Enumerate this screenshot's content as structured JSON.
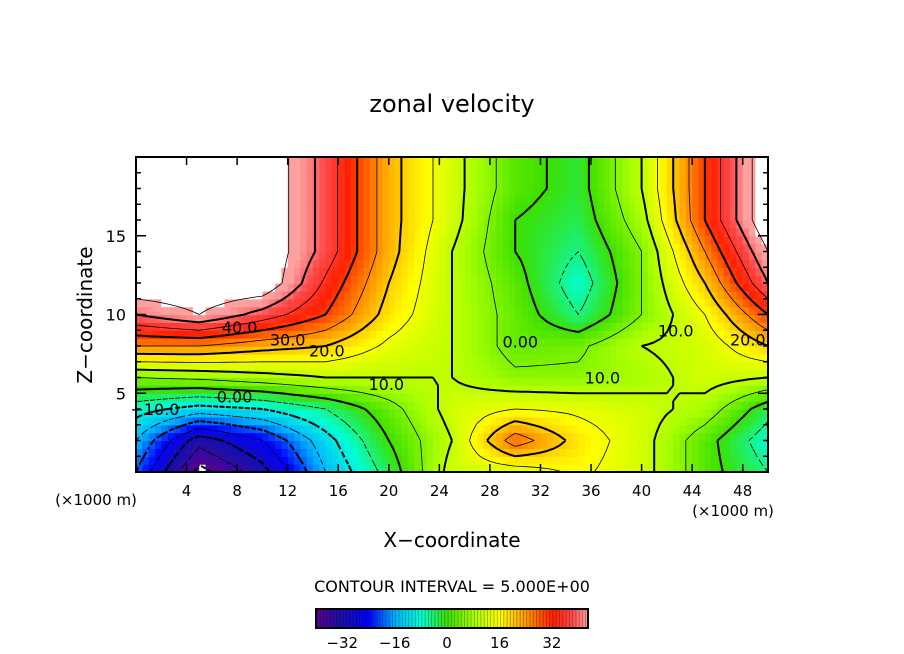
{
  "chart_data": {
    "type": "heatmap",
    "title": "zonal velocity",
    "xlabel": "X−coordinate",
    "ylabel": "Z−coordinate",
    "x_unit_left": "(×1000 m)",
    "x_unit_right": "(×1000 m)",
    "xlim": [
      0,
      50
    ],
    "ylim": [
      0,
      20
    ],
    "xticks": [
      4,
      8,
      12,
      16,
      20,
      24,
      28,
      32,
      36,
      40,
      44,
      48
    ],
    "yticks": [
      5,
      10,
      15
    ],
    "contour_interval_text": "CONTOUR INTERVAL = 5.000E+00",
    "contour_interval": 5,
    "colorbar": {
      "range": [
        -40,
        43
      ],
      "ticks": [
        "−32",
        "−16",
        "0",
        "16",
        "32"
      ],
      "tick_values": [
        -32,
        -16,
        0,
        16,
        32
      ]
    },
    "grid_x": [
      0,
      5,
      10,
      15,
      20,
      25,
      30,
      35,
      40,
      45,
      50
    ],
    "grid_z": [
      0,
      2,
      4,
      6,
      8,
      10,
      12,
      14,
      16,
      18,
      20
    ],
    "values": [
      [
        -20,
        -42,
        -32,
        -15,
        -3,
        12,
        12,
        16,
        12,
        2,
        -5
      ],
      [
        -15,
        -33,
        -25,
        -12,
        0,
        10,
        28,
        18,
        12,
        2,
        -8
      ],
      [
        -8,
        -12,
        -10,
        -5,
        3,
        12,
        15,
        14,
        12,
        8,
        -3
      ],
      [
        5,
        6,
        8,
        10,
        10,
        10,
        6,
        6,
        8,
        12,
        10
      ],
      [
        25,
        25,
        22,
        20,
        14,
        10,
        3,
        4,
        10,
        12,
        20
      ],
      [
        40,
        45,
        38,
        30,
        18,
        10,
        3,
        -5,
        5,
        15,
        30
      ],
      [
        50,
        50,
        50,
        34,
        20,
        10,
        2,
        -8,
        5,
        20,
        40
      ],
      [
        45,
        50,
        50,
        38,
        22,
        10,
        0,
        -5,
        5,
        25,
        45
      ],
      [
        50,
        50,
        50,
        38,
        22,
        12,
        0,
        -3,
        8,
        30,
        50
      ],
      [
        50,
        50,
        50,
        38,
        22,
        12,
        2,
        -2,
        10,
        30,
        50
      ],
      [
        50,
        50,
        50,
        38,
        22,
        12,
        2,
        -2,
        10,
        30,
        50
      ]
    ],
    "contour_labels": [
      {
        "text": "40.0",
        "x": 8.2,
        "z": 9.2
      },
      {
        "text": "30.0",
        "x": 12,
        "z": 8.4
      },
      {
        "text": "20.0",
        "x": 15.1,
        "z": 7.7
      },
      {
        "text": "10.0",
        "x": 19.8,
        "z": 5.6
      },
      {
        "text": "0.00",
        "x": 7.8,
        "z": 4.8
      },
      {
        "text": "−10.0",
        "x": 1.5,
        "z": 4.0
      },
      {
        "text": "0.00",
        "x": 30.4,
        "z": 8.3
      },
      {
        "text": "10.0",
        "x": 36.9,
        "z": 6.0
      },
      {
        "text": "10.0",
        "x": 42.7,
        "z": 9.0
      },
      {
        "text": "20.0",
        "x": 48.4,
        "z": 8.4
      }
    ],
    "colors": {
      "stops": [
        [
          -40,
          "#5a0090"
        ],
        [
          -32,
          "#1a10a8"
        ],
        [
          -24,
          "#0000ff"
        ],
        [
          -16,
          "#00b0ff"
        ],
        [
          -8,
          "#00ffd8"
        ],
        [
          0,
          "#3ce000"
        ],
        [
          8,
          "#a8ff00"
        ],
        [
          16,
          "#ffff00"
        ],
        [
          24,
          "#ff9800"
        ],
        [
          32,
          "#ff2000"
        ],
        [
          38,
          "#ff4848"
        ],
        [
          43,
          "#ffa0a0"
        ]
      ]
    }
  }
}
